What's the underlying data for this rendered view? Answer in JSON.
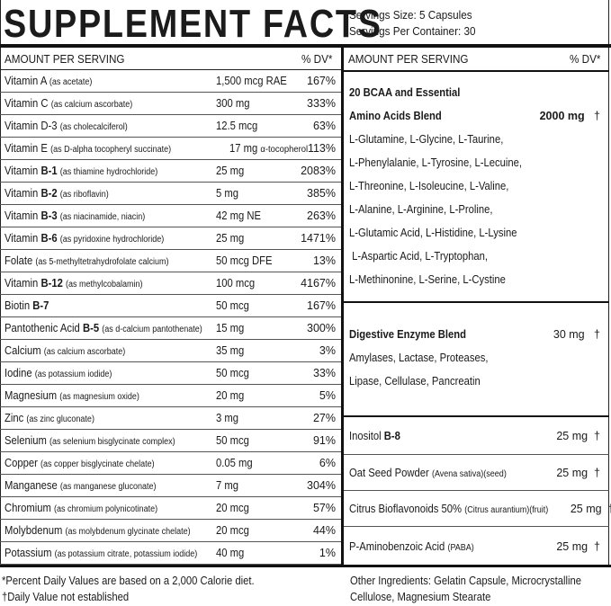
{
  "title": "SUPPLEMENT FACTS",
  "servings": {
    "size": "Servings Size: 5 Capsules",
    "per_container": "Servings Per Container: 30"
  },
  "left_header": {
    "amount": "AMOUNT PER SERVING",
    "dv": "% DV*"
  },
  "right_header": {
    "amount": "AMOUNT PER SERVING",
    "dv": "% DV*"
  },
  "nutrients": [
    {
      "name": "Vitamin A",
      "bold": "",
      "sub": "(as acetate)",
      "amount": "1,500 mcg RAE",
      "unit_note": "",
      "dv": "167%"
    },
    {
      "name": "Vitamin C",
      "bold": "",
      "sub": "(as calcium ascorbate)",
      "amount": "300 mg",
      "unit_note": "",
      "dv": "333%"
    },
    {
      "name": "Vitamin D-3",
      "bold": "",
      "sub": "(as cholecalciferol)",
      "amount": "12.5 mcg",
      "unit_note": "",
      "dv": "63%"
    },
    {
      "name": "Vitamin E",
      "bold": "",
      "sub": "(as D-alpha tocopheryl succinate)",
      "amount": "17 mg",
      "unit_note": "α-tocopherol",
      "dv": "113%"
    },
    {
      "name": "Vitamin",
      "bold": "B-1",
      "sub": "(as thiamine hydrochloride)",
      "amount": "25 mg",
      "unit_note": "",
      "dv": "2083%"
    },
    {
      "name": "Vitamin",
      "bold": "B-2",
      "sub": "(as riboflavin)",
      "amount": "5 mg",
      "unit_note": "",
      "dv": "385%"
    },
    {
      "name": "Vitamin",
      "bold": "B-3",
      "sub": "(as niacinamide, niacin)",
      "amount": "42 mg NE",
      "unit_note": "",
      "dv": "263%"
    },
    {
      "name": "Vitamin",
      "bold": "B-6",
      "sub": "(as pyridoxine hydrochloride)",
      "amount": "25 mg",
      "unit_note": "",
      "dv": "1471%"
    },
    {
      "name": "Folate",
      "bold": "",
      "sub": "(as 5-methyltetrahydrofolate calcium)",
      "amount": "50 mcg DFE",
      "unit_note": "",
      "dv": "13%"
    },
    {
      "name": "Vitamin",
      "bold": "B-12",
      "sub": "(as methylcobalamin)",
      "amount": "100 mcg",
      "unit_note": "",
      "dv": "4167%"
    },
    {
      "name": "Biotin",
      "bold": "B-7",
      "sub": "",
      "amount": "50 mcg",
      "unit_note": "",
      "dv": "167%"
    },
    {
      "name": "Pantothenic Acid",
      "bold": "B-5",
      "sub": "(as d-calcium pantothenate)",
      "amount": "15 mg",
      "unit_note": "",
      "dv": "300%"
    },
    {
      "name": "Calcium",
      "bold": "",
      "sub": "(as calcium ascorbate)",
      "amount": "35 mg",
      "unit_note": "",
      "dv": "3%"
    },
    {
      "name": "Iodine",
      "bold": "",
      "sub": "(as potassium iodide)",
      "amount": "50 mcg",
      "unit_note": "",
      "dv": "33%"
    },
    {
      "name": "Magnesium",
      "bold": "",
      "sub": "(as magnesium oxide)",
      "amount": "20 mg",
      "unit_note": "",
      "dv": "5%"
    },
    {
      "name": "Zinc",
      "bold": "",
      "sub": "(as zinc gluconate)",
      "amount": "3 mg",
      "unit_note": "",
      "dv": "27%"
    },
    {
      "name": "Selenium",
      "bold": "",
      "sub": "(as selenium bisglycinate complex)",
      "amount": "50 mcg",
      "unit_note": "",
      "dv": "91%"
    },
    {
      "name": "Copper",
      "bold": "",
      "sub": "(as copper bisglycinate chelate)",
      "amount": "0.05 mg",
      "unit_note": "",
      "dv": "6%"
    },
    {
      "name": "Manganese",
      "bold": "",
      "sub": "(as manganese gluconate)",
      "amount": "7 mg",
      "unit_note": "",
      "dv": "304%"
    },
    {
      "name": "Chromium",
      "bold": "",
      "sub": "(as chromium polynicotinate)",
      "amount": "20 mcg",
      "unit_note": "",
      "dv": "57%"
    },
    {
      "name": "Molybdenum",
      "bold": "",
      "sub": "(as molybdenum glycinate chelate)",
      "amount": "20 mcg",
      "unit_note": "",
      "dv": "44%"
    },
    {
      "name": "Potassium",
      "bold": "",
      "sub": "(as potassium citrate, potassium iodide)",
      "amount": "40 mg",
      "unit_note": "",
      "dv": "1%"
    }
  ],
  "amino_blend": {
    "title_line1": "20 BCAA and Essential",
    "title_line2": "Amino Acids Blend",
    "amount": "2000 mg",
    "dv": "†",
    "lines": [
      "L-Glutamine, L-Glycine, L-Taurine,",
      "L-Phenylalanie, L-Tyrosine, L-Lecuine,",
      "L-Threonine, L-Isoleucine, L-Valine,",
      "L-Alanine, L-Arginine, L-Proline,",
      "L-Glutamic Acid, L-Histidine, L-Lysine",
      " L-Aspartic Acid, L-Tryptophan,",
      "L-Methinonine, L-Serine, L-Cystine"
    ]
  },
  "enzyme_blend": {
    "title": "Digestive Enzyme Blend",
    "amount": "30 mg",
    "dv": "†",
    "lines": [
      "Amylases, Lactase, Proteases,",
      "Lipase, Cellulase, Pancreatin"
    ]
  },
  "other_rows": [
    {
      "name": "Inositol",
      "bold": "B-8",
      "sub": "",
      "amount": "25 mg",
      "dv": "†"
    },
    {
      "name": "Oat Seed Powder",
      "bold": "",
      "sub": "(Avena sativa)(seed)",
      "amount": "25 mg",
      "dv": "†"
    },
    {
      "name": "Citrus Bioflavonoids 50%",
      "bold": "",
      "sub": "(Citrus aurantium)(fruit)",
      "amount": "25 mg",
      "dv": "†"
    },
    {
      "name": "P-Aminobenzoic Acid",
      "bold": "",
      "sub": "(PABA)",
      "amount": "25 mg",
      "dv": "†"
    }
  ],
  "footnotes": {
    "dv_note": "*Percent Daily Values are based on a 2,000 Calorie diet.",
    "dagger_note": "†Daily Value not established",
    "other_ingredients_1": "Other Ingredients: Gelatin Capsule, Microcrystalline",
    "other_ingredients_2": "Cellulose, Magnesium Stearate"
  }
}
